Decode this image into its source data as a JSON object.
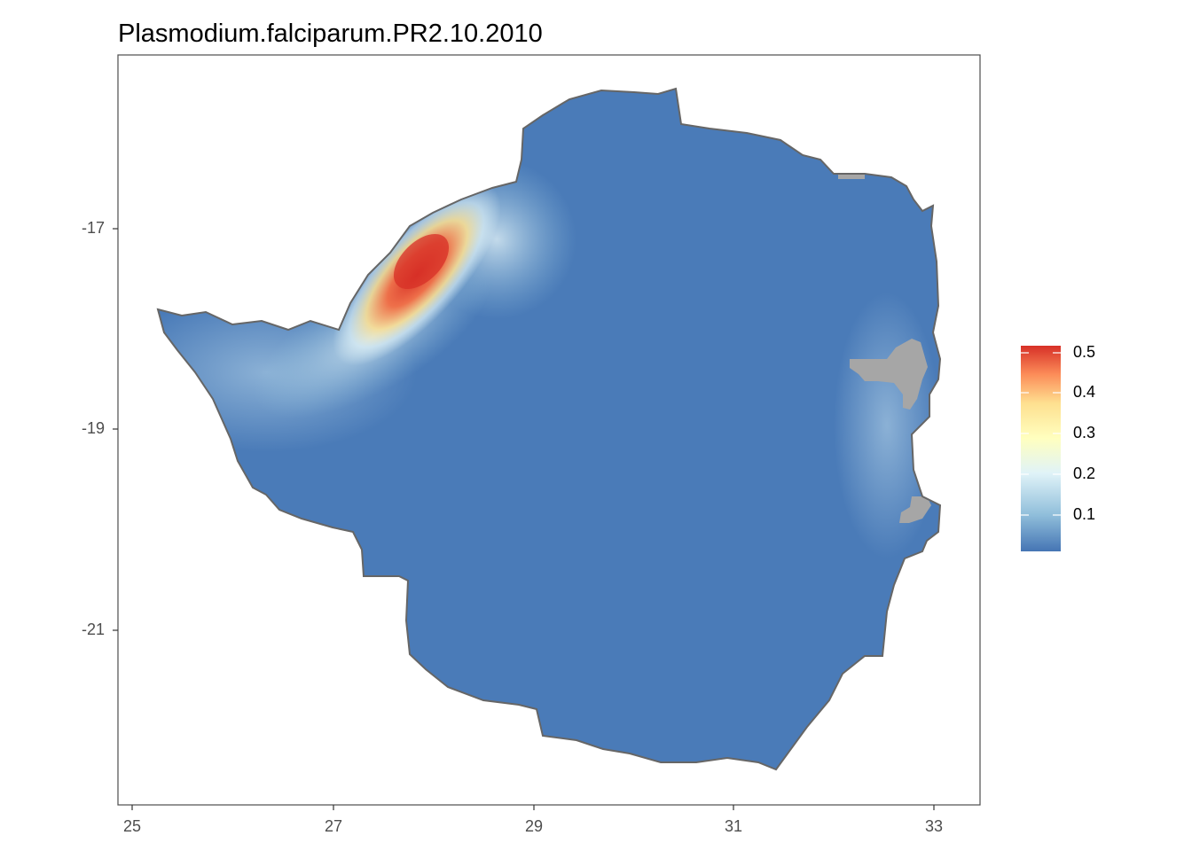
{
  "chart_data": {
    "type": "heatmap",
    "title": "Plasmodium.falciparum.PR2.10.2010",
    "xlabel": "",
    "ylabel": "",
    "x_ticks": [
      "25",
      "27",
      "29",
      "31",
      "33"
    ],
    "y_ticks": [
      "-17",
      "-19",
      "-21"
    ],
    "xlim": [
      24.85,
      33.45
    ],
    "ylim": [
      -23.8,
      -14.5
    ],
    "grid": false,
    "legend": {
      "placement": "right",
      "ticks": [
        "0.1",
        "0.2",
        "0.3",
        "0.4",
        "0.5"
      ],
      "range": [
        0.0,
        0.52
      ],
      "colors": [
        "#4575b4",
        "#91bfdb",
        "#e0f3f8",
        "#ffffbf",
        "#fee090",
        "#fc8d59",
        "#d73027"
      ]
    },
    "missing_color": "#a6a6a6",
    "hotspot_max": 0.5
  }
}
